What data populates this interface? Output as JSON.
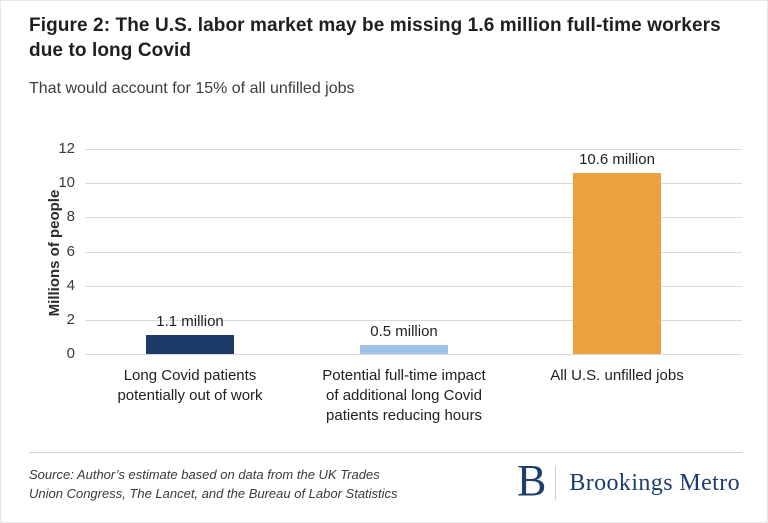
{
  "figure": {
    "title": "Figure 2: The U.S. labor market may be missing 1.6 million full-time workers due to long Covid",
    "subtitle": "That would account for 15% of all unfilled jobs"
  },
  "chart_data": {
    "type": "bar",
    "title": "Figure 2: The U.S. labor market may be missing 1.6 million full-time workers due to long Covid",
    "subtitle": "That would account for 15% of all unfilled jobs",
    "xlabel": "",
    "ylabel": "Millions of people",
    "ylim": [
      0,
      12
    ],
    "yticks": [
      0,
      2,
      4,
      6,
      8,
      10,
      12
    ],
    "grid": true,
    "legend": "none",
    "categories": [
      "Long Covid patients potentially out of work",
      "Potential full-time impact of additional long Covid patients reducing hours",
      "All U.S. unfilled jobs"
    ],
    "category_lines": [
      [
        "Long Covid patients",
        "potentially out of work"
      ],
      [
        "Potential full-time impact",
        "of additional long Covid",
        "patients reducing hours"
      ],
      [
        "All U.S. unfilled jobs"
      ]
    ],
    "values": [
      1.1,
      0.5,
      10.6
    ],
    "value_labels": [
      "1.1 million",
      "0.5 million",
      "10.6 million"
    ],
    "bar_colors": [
      "#1e3a68",
      "#9dc3e6",
      "#eba13d"
    ],
    "gridline_color": "#d9d9d9"
  },
  "footer": {
    "source_lines": [
      "Source: Author’s estimate based on data from the UK Trades",
      "Union Congress, The Lancet, and the Bureau of Labor Statistics"
    ],
    "logo_mark": "B",
    "logo_text": "Brookings Metro",
    "logo_color": "#1c3e6e"
  }
}
